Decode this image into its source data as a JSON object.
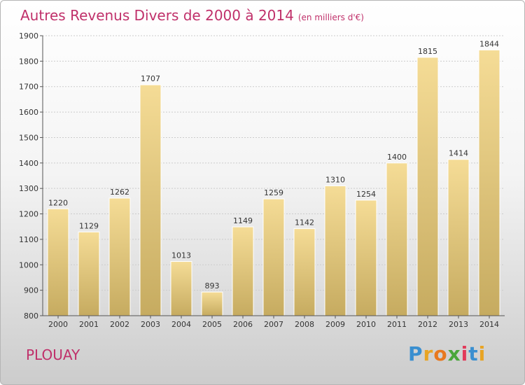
{
  "header": {
    "title": "Autres Revenus Divers de 2000 à 2014",
    "unit": "(en milliers d'€)"
  },
  "footer": {
    "city": "PLOUAY",
    "logo_text": "Proxiti"
  },
  "colors": {
    "title": "#c0306a",
    "bar_light": "#f5dc96",
    "bar_dark": "#c6ab60",
    "grid": "#cccccc"
  },
  "chart_data": {
    "type": "bar",
    "title": "Autres Revenus Divers de 2000 à 2014",
    "subtitle": "(en milliers d'€)",
    "xlabel": "",
    "ylabel": "",
    "categories": [
      "2000",
      "2001",
      "2002",
      "2003",
      "2004",
      "2005",
      "2006",
      "2007",
      "2008",
      "2009",
      "2010",
      "2011",
      "2012",
      "2013",
      "2014"
    ],
    "values": [
      1220,
      1129,
      1262,
      1707,
      1013,
      893,
      1149,
      1259,
      1142,
      1310,
      1254,
      1400,
      1815,
      1414,
      1844
    ],
    "ylim": [
      800,
      1900
    ],
    "yticks": [
      800,
      900,
      1000,
      1100,
      1200,
      1300,
      1400,
      1500,
      1600,
      1700,
      1800,
      1900
    ],
    "grid": true,
    "legend": "none"
  }
}
